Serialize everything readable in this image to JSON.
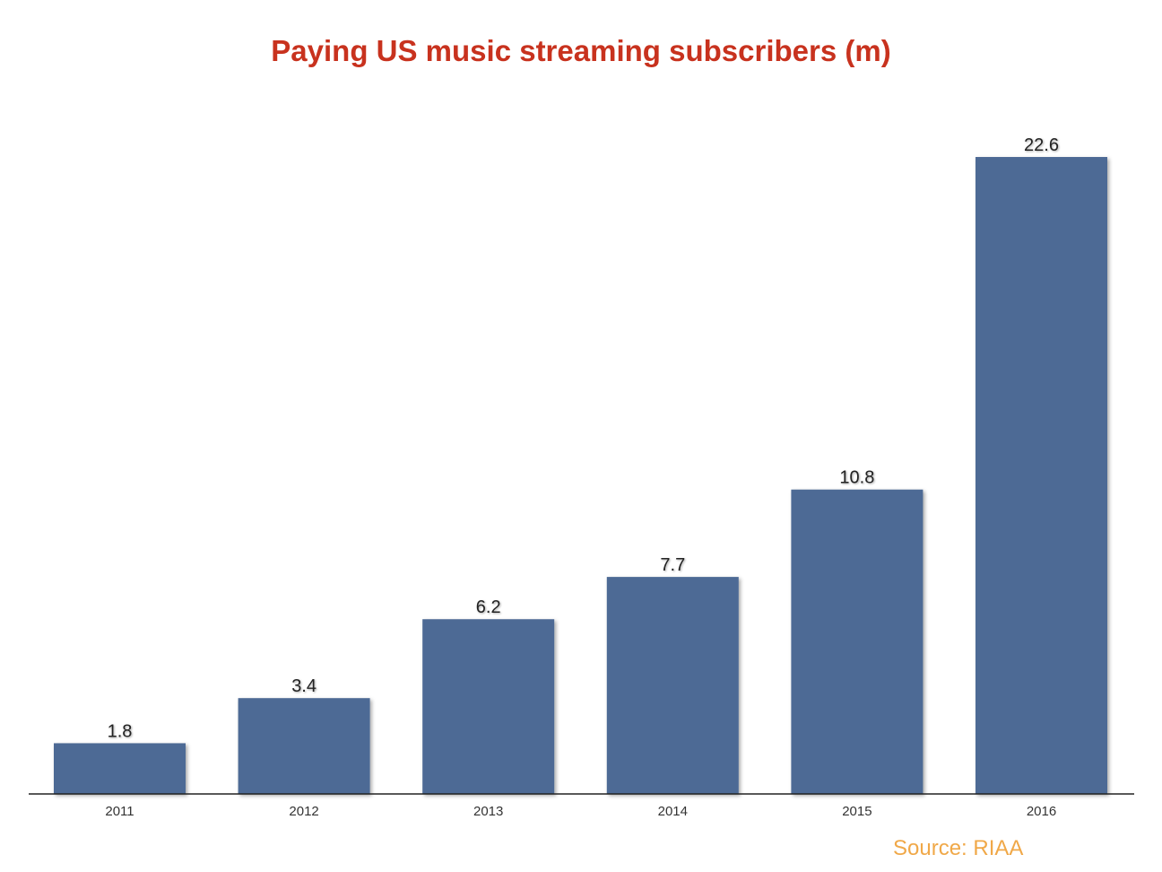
{
  "chart_data": {
    "type": "bar",
    "title": "Paying US music streaming subscribers (m)",
    "categories": [
      "2011",
      "2012",
      "2013",
      "2014",
      "2015",
      "2016"
    ],
    "values": [
      1.8,
      3.4,
      6.2,
      7.7,
      10.8,
      22.6
    ],
    "data_labels": [
      "1.8",
      "3.4",
      "6.2",
      "7.7",
      "10.8",
      "22.6"
    ],
    "xlabel": "",
    "ylabel": "",
    "ylim": [
      0,
      22.6
    ],
    "grid": false,
    "legend": "none",
    "annotation": "Source: RIAA"
  },
  "colors": {
    "title": "#c8321e",
    "bar": "#4d6b95",
    "source": "#f0a848",
    "axis": "#222222"
  }
}
